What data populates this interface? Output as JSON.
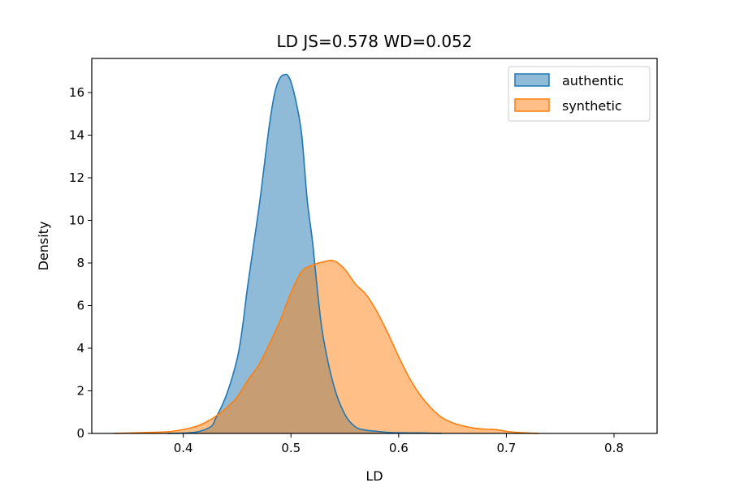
{
  "chart_data": {
    "type": "area",
    "title": "LD  JS=0.578  WD=0.052",
    "xlabel": "LD",
    "ylabel": "Density",
    "xlim": [
      0.315,
      0.84
    ],
    "ylim": [
      0,
      17.6
    ],
    "xticks": [
      0.4,
      0.5,
      0.6,
      0.7,
      0.8
    ],
    "xtick_labels": [
      "0.4",
      "0.5",
      "0.6",
      "0.7",
      "0.8"
    ],
    "yticks": [
      0,
      2,
      4,
      6,
      8,
      10,
      12,
      14,
      16
    ],
    "ytick_labels": [
      "0",
      "2",
      "4",
      "6",
      "8",
      "10",
      "12",
      "14",
      "16"
    ],
    "grid": false,
    "legend_position": "top-right",
    "series": [
      {
        "name": "authentic",
        "color": "#1f77b4",
        "x": [
          0.385,
          0.41,
          0.425,
          0.43,
          0.44,
          0.45,
          0.455,
          0.46,
          0.47,
          0.475,
          0.48,
          0.485,
          0.49,
          0.495,
          0.497,
          0.5,
          0.505,
          0.51,
          0.515,
          0.52,
          0.525,
          0.53,
          0.54,
          0.55,
          0.56,
          0.57,
          0.58,
          0.59,
          0.6,
          0.62,
          0.64
        ],
        "y": [
          0,
          0.05,
          0.3,
          0.7,
          1.8,
          3.5,
          5.0,
          7.0,
          10.5,
          12.5,
          14.5,
          16.0,
          16.7,
          16.85,
          16.8,
          16.5,
          15.5,
          14.0,
          11.0,
          9.0,
          6.5,
          4.5,
          2.2,
          0.9,
          0.3,
          0.15,
          0.1,
          0.05,
          0.03,
          0.02,
          0
        ]
      },
      {
        "name": "synthetic",
        "color": "#ff7f0e",
        "x": [
          0.335,
          0.37,
          0.39,
          0.41,
          0.42,
          0.43,
          0.44,
          0.45,
          0.46,
          0.47,
          0.48,
          0.49,
          0.5,
          0.51,
          0.52,
          0.53,
          0.54,
          0.55,
          0.56,
          0.57,
          0.58,
          0.59,
          0.6,
          0.61,
          0.62,
          0.63,
          0.64,
          0.65,
          0.66,
          0.67,
          0.68,
          0.69,
          0.7,
          0.71,
          0.72,
          0.73
        ],
        "y": [
          0,
          0.05,
          0.1,
          0.3,
          0.5,
          0.8,
          1.2,
          1.7,
          2.5,
          3.2,
          4.2,
          5.3,
          6.6,
          7.6,
          7.9,
          8.05,
          8.1,
          7.7,
          7.0,
          6.5,
          5.7,
          4.7,
          3.6,
          2.6,
          1.8,
          1.2,
          0.75,
          0.5,
          0.35,
          0.25,
          0.2,
          0.18,
          0.1,
          0.05,
          0.02,
          0
        ]
      }
    ]
  }
}
